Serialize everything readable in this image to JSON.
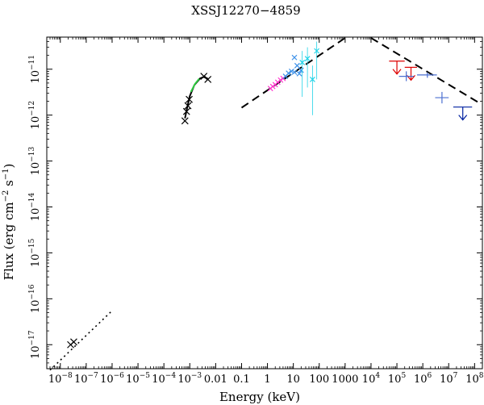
{
  "chart_data": {
    "type": "scatter",
    "title": "XSSJ12270−4859",
    "xlabel": "Energy (keV)",
    "ylabel_parts": {
      "main": "Flux (erg cm",
      "exp1": "−2",
      "mid": " s",
      "exp2": "−1",
      "end": ")"
    },
    "x_scale": "log",
    "y_scale": "log",
    "xlim": [
      3e-09,
      200000000.0
    ],
    "ylim": [
      3e-18,
      5e-11
    ],
    "x_ticks": [
      {
        "value": 1e-08,
        "base": "10",
        "exp": "−8"
      },
      {
        "value": 1e-07,
        "base": "10",
        "exp": "−7"
      },
      {
        "value": 1e-06,
        "base": "10",
        "exp": "−6"
      },
      {
        "value": 1e-05,
        "base": "10",
        "exp": "−5"
      },
      {
        "value": 0.0001,
        "base": "10",
        "exp": "−4"
      },
      {
        "value": 0.001,
        "base": "10",
        "exp": "−3"
      },
      {
        "value": 0.01,
        "text": "0.01"
      },
      {
        "value": 0.1,
        "text": "0.1"
      },
      {
        "value": 1,
        "text": "1"
      },
      {
        "value": 10,
        "text": "10"
      },
      {
        "value": 100,
        "text": "100"
      },
      {
        "value": 1000,
        "text": "1000"
      },
      {
        "value": 10000.0,
        "base": "10",
        "exp": "4"
      },
      {
        "value": 100000.0,
        "base": "10",
        "exp": "5"
      },
      {
        "value": 1000000.0,
        "base": "10",
        "exp": "6"
      },
      {
        "value": 10000000.0,
        "base": "10",
        "exp": "7"
      },
      {
        "value": 100000000.0,
        "base": "10",
        "exp": "8"
      }
    ],
    "y_ticks": [
      {
        "value": 1e-11,
        "base": "10",
        "exp": "−11"
      },
      {
        "value": 1e-12,
        "base": "10",
        "exp": "−12"
      },
      {
        "value": 1e-13,
        "base": "10",
        "exp": "−13"
      },
      {
        "value": 1e-14,
        "base": "10",
        "exp": "−14"
      },
      {
        "value": 1e-15,
        "base": "10",
        "exp": "−15"
      },
      {
        "value": 1e-16,
        "base": "10",
        "exp": "−16"
      },
      {
        "value": 1e-17,
        "base": "10",
        "exp": "−17"
      }
    ],
    "series": [
      {
        "style": "cross",
        "color": "#000000",
        "points": [
          {
            "x": 2.5e-08,
            "y": 1e-17
          },
          {
            "x": 3.3e-08,
            "y": 1.15e-17
          },
          {
            "x": 0.00065,
            "y": 7.5e-13
          },
          {
            "x": 0.00075,
            "y": 1.2e-12
          },
          {
            "x": 0.00085,
            "y": 1.6e-12
          },
          {
            "x": 0.00095,
            "y": 2.2e-12
          },
          {
            "x": 0.0035,
            "y": 7e-12
          },
          {
            "x": 0.005,
            "y": 6e-12
          }
        ]
      },
      {
        "style": "cross",
        "color": "#ff33cc",
        "points": [
          {
            "x": 1.3,
            "y": 3.8e-12
          },
          {
            "x": 1.6,
            "y": 4.2e-12
          },
          {
            "x": 2.0,
            "y": 4.6e-12
          },
          {
            "x": 2.5,
            "y": 5.2e-12
          },
          {
            "x": 3.2,
            "y": 5.8e-12
          },
          {
            "x": 4.0,
            "y": 6.3e-12
          }
        ]
      },
      {
        "style": "cross",
        "color": "#3a8fe8",
        "points": [
          {
            "x": 5.0,
            "y": 7e-12
          },
          {
            "x": 6.5,
            "y": 8.2e-12
          },
          {
            "x": 8.5,
            "y": 9e-12
          },
          {
            "x": 11,
            "y": 8.6e-12
          },
          {
            "x": 14,
            "y": 1.2e-11
          },
          {
            "x": 17,
            "y": 8e-12
          },
          {
            "x": 20,
            "y": 9.5e-12
          },
          {
            "x": 11,
            "y": 1.8e-11
          }
        ]
      },
      {
        "style": "crosserr",
        "color": "#22d4e8",
        "points": [
          {
            "x": 22,
            "y": 1.4e-11,
            "ylo": 2.5e-12,
            "yhi": 2.5e-11
          },
          {
            "x": 35,
            "y": 1.7e-11,
            "ylo": 4e-12,
            "yhi": 3e-11
          },
          {
            "x": 55,
            "y": 6e-12,
            "ylo": 1e-12,
            "yhi": 1.2e-11
          },
          {
            "x": 80,
            "y": 2.5e-11,
            "ylo": 6e-12,
            "yhi": 4e-11
          }
        ]
      },
      {
        "style": "ul",
        "color": "#dd0000",
        "points": [
          {
            "x": 100000.0,
            "y": 1.5e-11,
            "xlo": 50000.0,
            "xhi": 200000.0
          },
          {
            "x": 350000.0,
            "y": 1.1e-11,
            "xlo": 200000.0,
            "xhi": 600000.0
          }
        ]
      },
      {
        "style": "err",
        "color": "#4b6fd1",
        "points": [
          {
            "x": 230000.0,
            "y": 7e-12,
            "xlo": 120000.0,
            "xhi": 450000.0,
            "ylo": 5.5e-12,
            "yhi": 9e-12
          },
          {
            "x": 1500000.0,
            "y": 7.5e-12,
            "xlo": 600000.0,
            "xhi": 3500000.0,
            "ylo": 6.5e-12,
            "yhi": 8.5e-12
          },
          {
            "x": 5500000.0,
            "y": 2.4e-12,
            "xlo": 3000000.0,
            "xhi": 10000000.0,
            "ylo": 1.8e-12,
            "yhi": 3.2e-12
          }
        ]
      },
      {
        "style": "ul",
        "color": "#0020a0",
        "points": [
          {
            "x": 35000000.0,
            "y": 1.5e-12,
            "xlo": 15000000.0,
            "xhi": 80000000.0
          }
        ]
      }
    ],
    "lines": [
      {
        "style": "dotted",
        "color": "#000000",
        "points": [
          [
            4e-09,
            2.8e-18
          ],
          [
            1e-06,
            5.5e-17
          ]
        ]
      },
      {
        "style": "solid",
        "color": "#000000",
        "points": [
          [
            0.00065,
            8.5e-13
          ],
          [
            0.0008,
            1.5e-12
          ],
          [
            0.001,
            2.6e-12
          ],
          [
            0.0015,
            4.5e-12
          ],
          [
            0.0025,
            6.3e-12
          ],
          [
            0.0035,
            6.8e-12
          ],
          [
            0.005,
            6.2e-12
          ]
        ]
      },
      {
        "style": "solid",
        "color": "#2ecc40",
        "points": [
          [
            0.0011,
            3.2e-12
          ],
          [
            0.0016,
            4.8e-12
          ],
          [
            0.0023,
            6.2e-12
          ]
        ]
      },
      {
        "style": "dashed",
        "color": "#000000",
        "points": [
          [
            0.1,
            1.45e-12
          ],
          [
            1000,
            4.8e-11
          ]
        ]
      },
      {
        "style": "dashed",
        "color": "#000000",
        "points": [
          [
            10000.0,
            4.8e-11
          ],
          [
            150000000.0,
            1.85e-12
          ]
        ]
      }
    ]
  }
}
